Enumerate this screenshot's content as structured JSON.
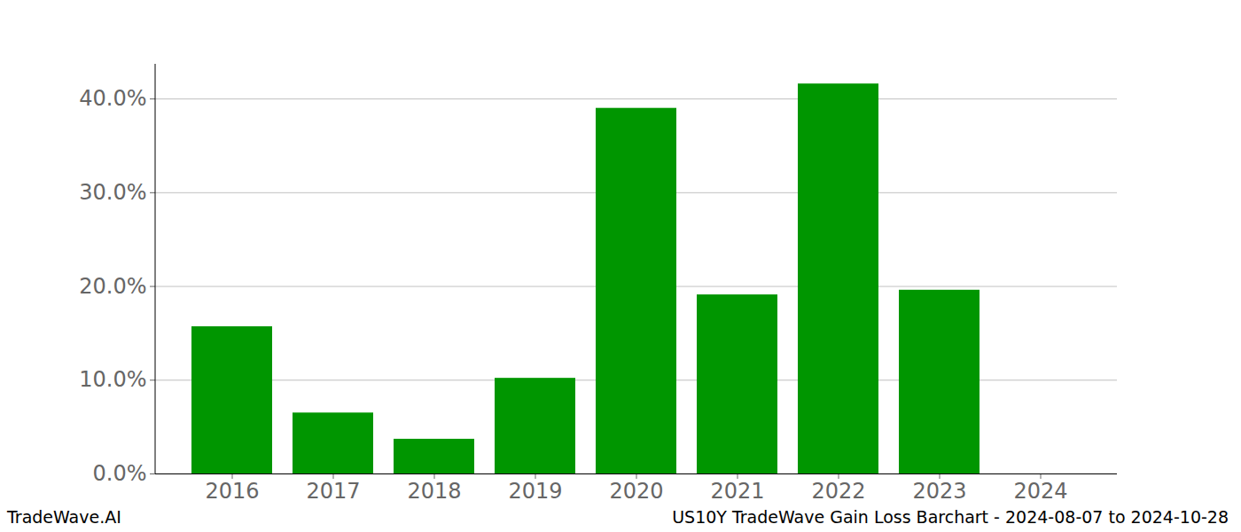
{
  "chart_data": {
    "type": "bar",
    "title": "US10Y TradeWave Gain Loss Barchart - 2024-08-07 to 2024-10-28",
    "annotations": [
      "TradeWave.AI"
    ],
    "categories": [
      "2016",
      "2017",
      "2018",
      "2019",
      "2020",
      "2021",
      "2022",
      "2023",
      "2024"
    ],
    "values": [
      15.7,
      6.5,
      3.7,
      10.2,
      39.0,
      19.1,
      41.6,
      19.6,
      0
    ],
    "color": "#009600",
    "ylim": [
      0,
      43.7
    ],
    "yticks": [
      {
        "value": 0,
        "label": "0.0%"
      },
      {
        "value": 10,
        "label": "10.0%"
      },
      {
        "value": 20,
        "label": "20.0%"
      },
      {
        "value": 30,
        "label": "30.0%"
      },
      {
        "value": 40,
        "label": "40.0%"
      }
    ],
    "grid": true
  }
}
